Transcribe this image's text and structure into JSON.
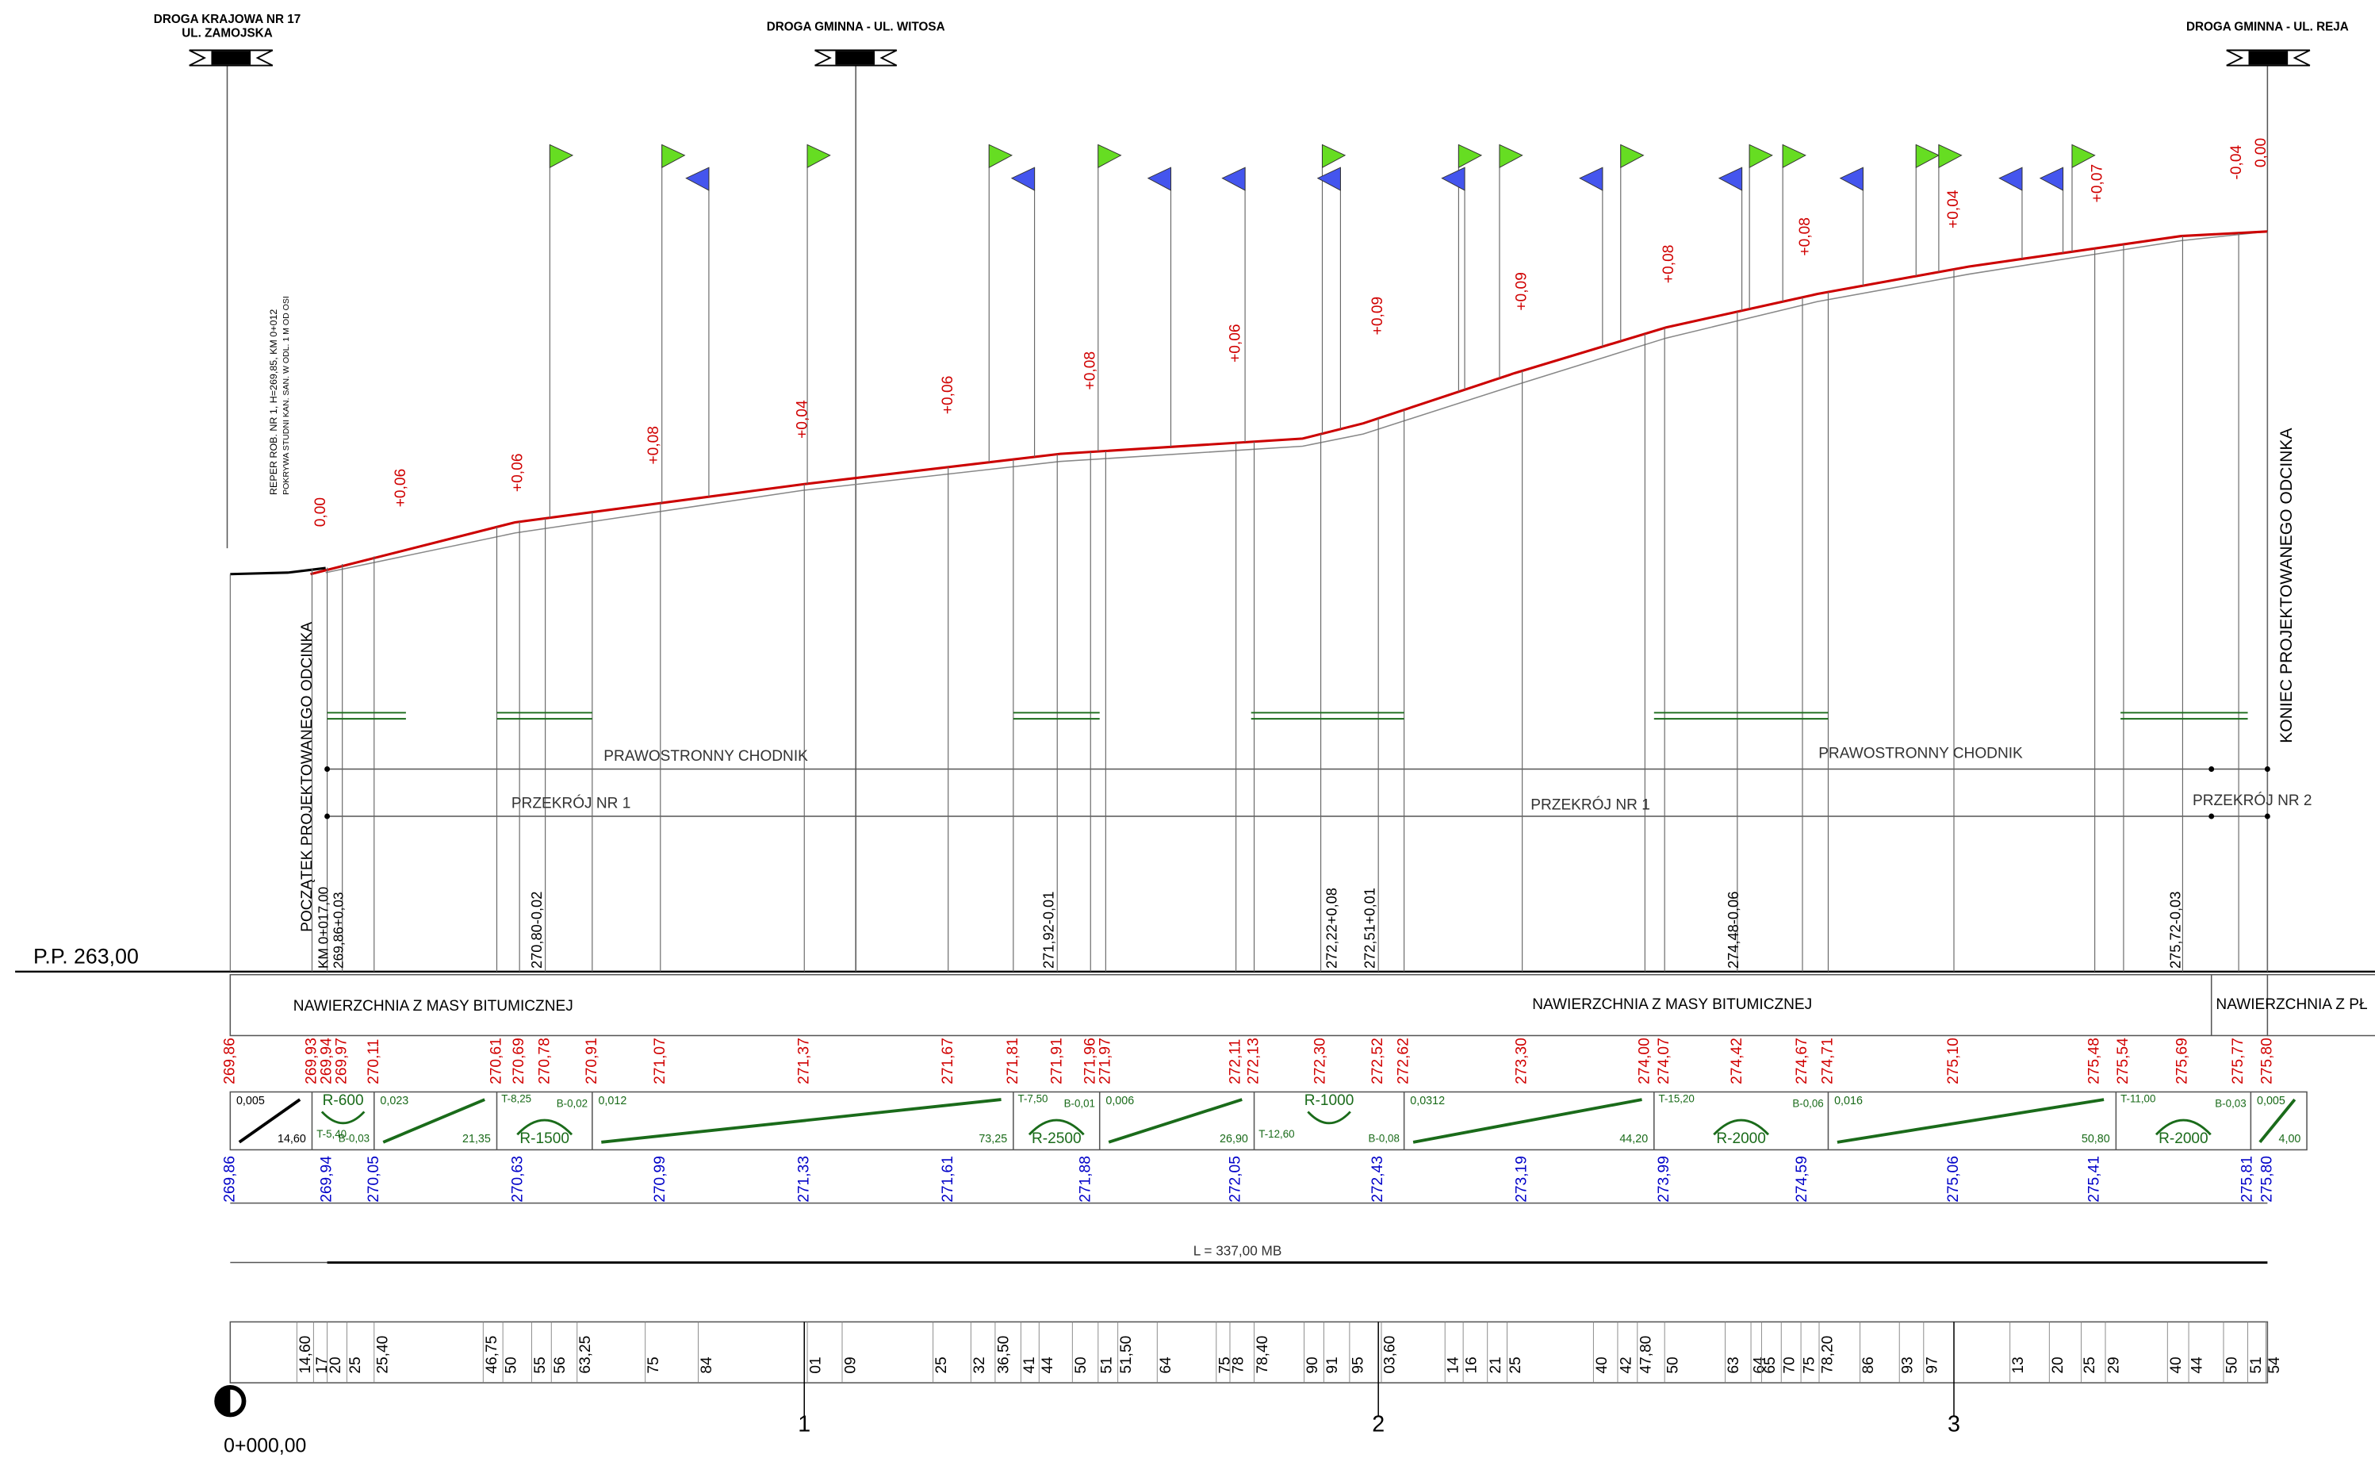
{
  "headers": {
    "left": [
      "DROGA KRAJOWA NR 17",
      "UL. ZAMOJSKA"
    ],
    "middle": "DROGA GMINNA - UL. WITOSA",
    "right": "DROGA GMINNA - UL. REJA"
  },
  "benchmark": [
    "REPER ROB. NR 1, H=269,85, KM 0+012",
    "POKRYWA STUDNI KAN. SAN. W ODL. 1 M OD OSI"
  ],
  "start": [
    "POCZĄTEK PROJEKTOWANEGO ODCINKA",
    "KM 0+017,00",
    "269,86+0,03"
  ],
  "end": "KONIEC PROJEKTOWANEGO ODCINKA",
  "level_notes": [
    "270,80-0,02",
    "271,92-0,01",
    "272,22+0,08",
    "272,51+0,01",
    "274,48-0,06",
    "275,72-0,03"
  ],
  "grade_diffs": [
    "0,00",
    "+0,06",
    "+0,06",
    "+0,08",
    "+0,04",
    "+0,06",
    "+0,08",
    "+0,06",
    "+0,09",
    "+0,09",
    "+0,08",
    "+0,08",
    "+0,04",
    "+0,07",
    "-0,04",
    "0,00"
  ],
  "sidewalk": [
    "PRAWOSTRONNY CHODNIK",
    "PRAWOSTRONNY CHODNIK"
  ],
  "sections": [
    "PRZEKRÓJ NR 1",
    "PRZEKRÓJ NR 1",
    "PRZEKRÓJ NR 2"
  ],
  "datum": "P.P. 263,00",
  "surface": [
    "NAWIERZCHNIA  Z MASY BITUMICZNEJ",
    "NAWIERZCHNIA  Z MASY BITUMICZNEJ",
    "NAWIERZCHNIA  Z PŁ"
  ],
  "design_elevations": [
    "269,86",
    "269,93",
    "269,94",
    "269,97",
    "270,11",
    "270,61",
    "270,69",
    "270,78",
    "270,91",
    "271,07",
    "271,37",
    "271,67",
    "271,81",
    "271,91",
    "271,96",
    "271,97",
    "272,11",
    "272,13",
    "272,30",
    "272,52",
    "272,62",
    "273,30",
    "274,00",
    "274,07",
    "274,42",
    "274,67",
    "274,71",
    "275,10",
    "275,48",
    "275,54",
    "275,69",
    "275,77",
    "275,80"
  ],
  "terrain_elevations": [
    "269,86",
    "269,94",
    "270,05",
    "270,63",
    "270,99",
    "271,33",
    "271,61",
    "271,88",
    "272,05",
    "272,43",
    "273,19",
    "273,99",
    "274,59",
    "275,06",
    "275,41",
    "275,81",
    "275,80"
  ],
  "grade_band": [
    [
      "0,005",
      "14,60"
    ],
    [
      "R-600",
      "T-5,40",
      "B-0,03"
    ],
    [
      "0,023",
      "21,35"
    ],
    [
      "T-8,25",
      "B-0,02",
      "R-1500"
    ],
    [
      "0,012",
      "73,25"
    ],
    [
      "T-7,50",
      "B-0,01",
      "R-2500"
    ],
    [
      "0,006",
      "26,90"
    ],
    [
      "R-1000",
      "T-12,60",
      "B-0,08"
    ],
    [
      "0,0312",
      "44,20"
    ],
    [
      "T-15,20",
      "B-0,06",
      "R-2000"
    ],
    [
      "0,016",
      "50,80"
    ],
    [
      "T-11,00",
      "B-0,03",
      "R-2000"
    ],
    [
      "0,005",
      "4,00"
    ]
  ],
  "length": "L = 337,00 MB",
  "chainage": [
    "14,60",
    "17",
    "20",
    "25",
    "25,40",
    "46,75",
    "50",
    "55",
    "56",
    "63,25",
    "75",
    "84",
    "01",
    "09",
    "25",
    "32",
    "36,50",
    "41",
    "44",
    "50",
    "51",
    "51,50",
    "64",
    "75",
    "78",
    "78,40",
    "90",
    "91",
    "95",
    "03,60",
    "14",
    "16",
    "21",
    "25",
    "40",
    "42",
    "47,80",
    "50",
    "63",
    "64",
    "65",
    "70",
    "75",
    "78,20",
    "86",
    "93",
    "97",
    "13",
    "20",
    "25",
    "29",
    "40",
    "44",
    "50",
    "51",
    "54"
  ],
  "hectometers": [
    "1",
    "2",
    "3"
  ],
  "start_station": "0+000,00"
}
